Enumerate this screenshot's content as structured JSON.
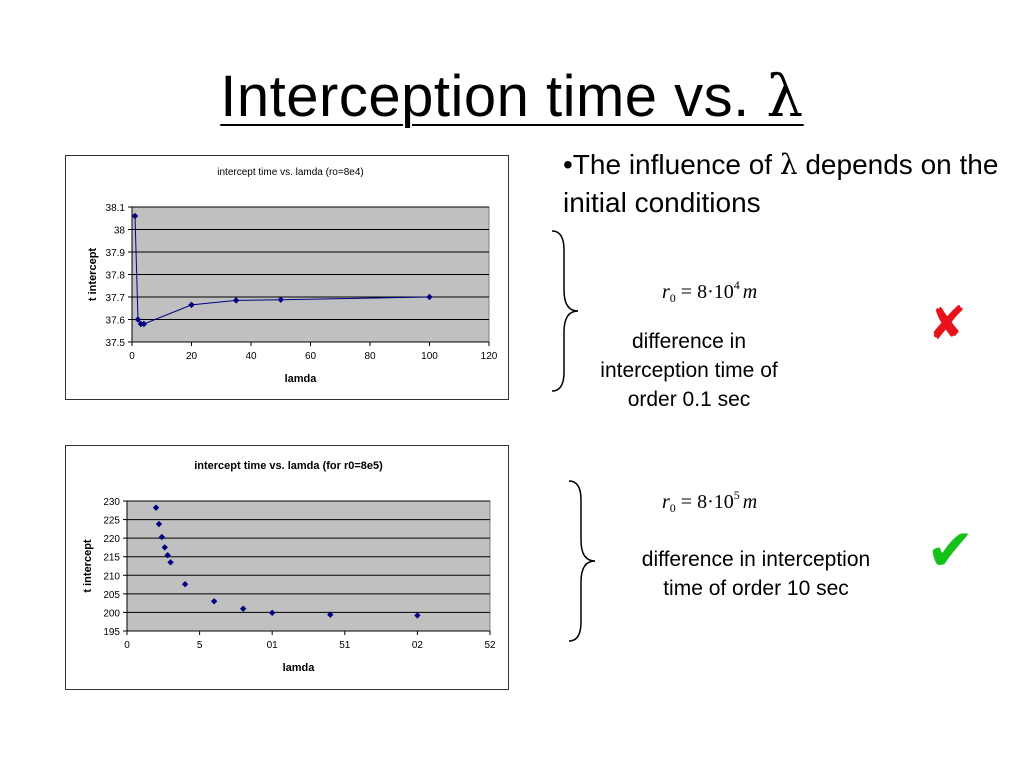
{
  "slide": {
    "title_text": "Interception time vs. ",
    "title_symbol": "λ",
    "bullet_prefix": "•The influence of ",
    "bullet_symbol": "λ",
    "bullet_suffix": " depends on the initial conditions"
  },
  "conditions": [
    {
      "formula": {
        "var": "r",
        "sub": "0",
        "eq": " = 8·10",
        "exp": "4",
        "unit": "m"
      },
      "note": "difference in interception time of order 0.1 sec",
      "verdict_icon": "cross-mark-icon",
      "verdict_glyph": "✘",
      "verdict_color": "#e8121a"
    },
    {
      "formula": {
        "var": "r",
        "sub": "0",
        "eq": " = 8·10",
        "exp": "5",
        "unit": "m"
      },
      "note": "difference in interception time of order 10 sec",
      "verdict_icon": "check-mark-icon",
      "verdict_glyph": "✔",
      "verdict_color": "#16c21a"
    }
  ],
  "chart_data": [
    {
      "type": "line",
      "title": "intercept time vs. lamda (ro=8e4)",
      "xlabel": "lamda",
      "ylabel": "t intercept",
      "xlim": [
        0,
        120
      ],
      "ylim": [
        37.5,
        38.1
      ],
      "xticks": [
        "0",
        "20",
        "40",
        "60",
        "80",
        "100",
        "120"
      ],
      "yticks": [
        "37.5",
        "37.6",
        "37.7",
        "37.8",
        "37.9",
        "38",
        "38.1"
      ],
      "grid": true,
      "legend": "none",
      "plot_bg": "#c0c0c0",
      "series_color": "#000080",
      "series": [
        {
          "x": [
            1,
            2,
            3,
            4,
            20,
            35,
            50,
            100
          ],
          "y": [
            38.06,
            37.6,
            37.58,
            37.58,
            37.665,
            37.685,
            37.688,
            37.7
          ]
        }
      ]
    },
    {
      "type": "scatter",
      "title": "intercept time vs. lamda (for r0=8e5)",
      "xlabel": "lamda",
      "ylabel": "t intercept",
      "xlim": [
        0,
        25
      ],
      "ylim": [
        195,
        230
      ],
      "xticks": [
        "0",
        "5",
        "01",
        "51",
        "02",
        "52"
      ],
      "yticks": [
        "195",
        "200",
        "205",
        "210",
        "215",
        "220",
        "225",
        "230"
      ],
      "grid": true,
      "legend": "none",
      "plot_bg": "#c0c0c0",
      "series_color": "#000080",
      "series": [
        {
          "x": [
            2,
            2.2,
            2.4,
            2.6,
            2.8,
            3,
            4,
            6,
            8,
            10,
            14,
            20
          ],
          "y": [
            228.2,
            223.8,
            220.3,
            217.5,
            215.4,
            213.5,
            207.6,
            203,
            201,
            199.9,
            199.4,
            199.2
          ]
        }
      ]
    }
  ]
}
